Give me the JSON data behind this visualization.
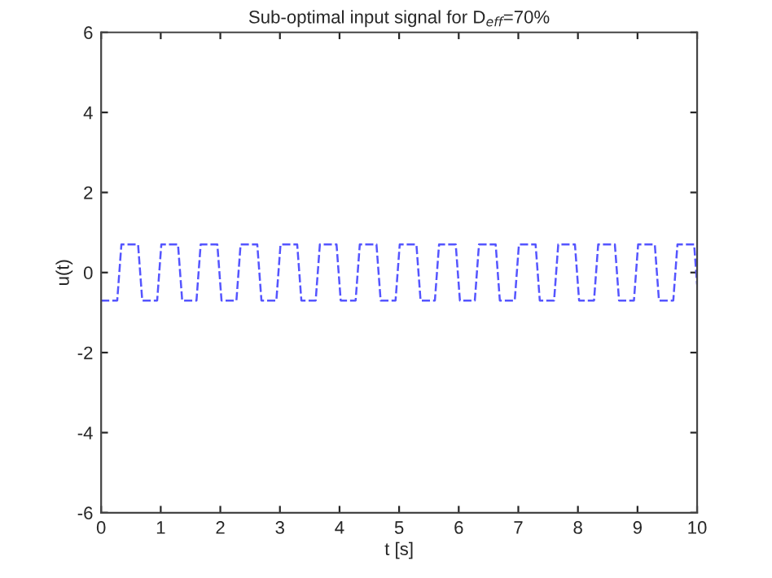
{
  "chart_data": {
    "type": "line",
    "title": "Sub-optimal input signal for D$_{eff}$=70%",
    "xlabel": "t [s]",
    "ylabel": "u(t)",
    "x": [
      0,
      0.27,
      0.34,
      0.62,
      0.69,
      0.94,
      1.01,
      1.29,
      1.36,
      1.6,
      1.67,
      1.95,
      2.02,
      2.27,
      2.34,
      2.62,
      2.69,
      2.94,
      3.01,
      3.29,
      3.36,
      3.6,
      3.67,
      3.95,
      4.02,
      4.27,
      4.34,
      4.62,
      4.69,
      4.94,
      5.01,
      5.29,
      5.36,
      5.6,
      5.67,
      5.95,
      6.02,
      6.27,
      6.34,
      6.62,
      6.69,
      6.94,
      7.01,
      7.29,
      7.36,
      7.6,
      7.67,
      7.95,
      8.02,
      8.27,
      8.34,
      8.62,
      8.69,
      8.94,
      9.01,
      9.29,
      9.36,
      9.6,
      9.67,
      9.95,
      10
    ],
    "series": [
      {
        "color": "#5555ff",
        "values": [
          -0.7,
          -0.7,
          0.7,
          0.7,
          -0.7,
          -0.7,
          0.7,
          0.7,
          -0.7,
          -0.7,
          0.7,
          0.7,
          -0.7,
          -0.7,
          0.7,
          0.7,
          -0.7,
          -0.7,
          0.7,
          0.7,
          -0.7,
          -0.7,
          0.7,
          0.7,
          -0.7,
          -0.7,
          0.7,
          0.7,
          -0.7,
          -0.7,
          0.7,
          0.7,
          -0.7,
          -0.7,
          0.7,
          0.7,
          -0.7,
          -0.7,
          0.7,
          0.7,
          -0.7,
          -0.7,
          0.7,
          0.7,
          -0.7,
          -0.7,
          0.7,
          0.7,
          -0.7,
          -0.7,
          0.7,
          0.7,
          -0.7,
          -0.7,
          0.7,
          0.7,
          -0.7,
          -0.7,
          0.7,
          0.7,
          -0.3
        ]
      }
    ],
    "xlim": [
      0,
      10
    ],
    "ylim": [
      -6,
      6
    ],
    "xticks": [
      0,
      1,
      2,
      3,
      4,
      5,
      6,
      7,
      8,
      9,
      10
    ],
    "yticks": [
      -6,
      -4,
      -2,
      0,
      2,
      4,
      6
    ],
    "grid": false,
    "legend": false,
    "marker": "none",
    "line_style": "dashed"
  }
}
